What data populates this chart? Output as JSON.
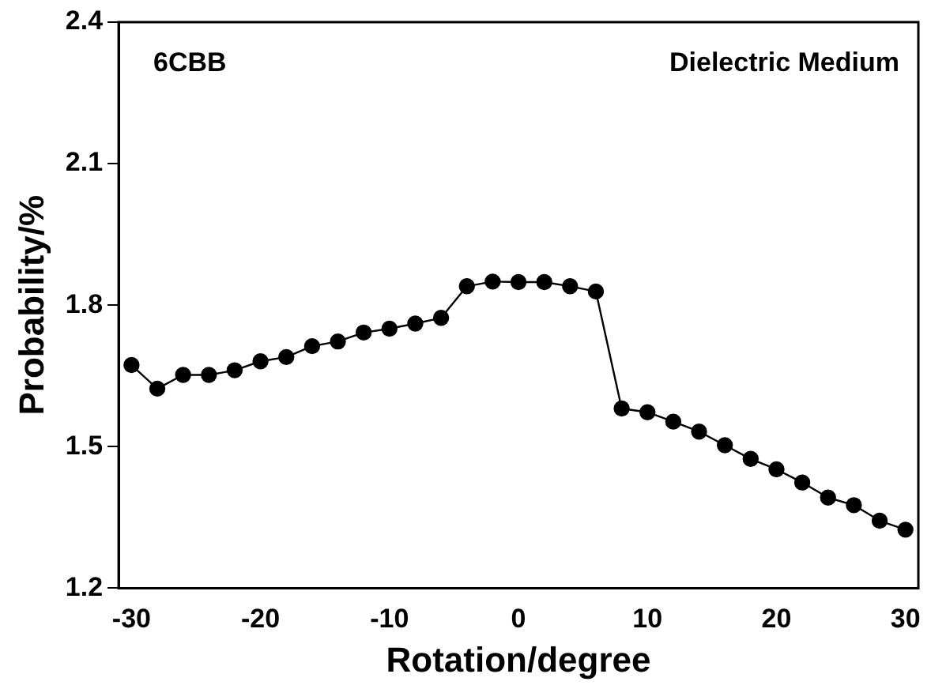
{
  "chart_data": {
    "type": "line",
    "xlabel": "Rotation/degree",
    "ylabel": "Probability/%",
    "annotations": [
      "6CBB",
      "Dielectric Medium"
    ],
    "x": [
      -30,
      -28,
      -26,
      -24,
      -22,
      -20,
      -18,
      -16,
      -14,
      -12,
      -10,
      -8,
      -6,
      -4,
      -2,
      0,
      2,
      4,
      6,
      8,
      10,
      12,
      14,
      16,
      18,
      20,
      22,
      24,
      26,
      28,
      30
    ],
    "series": [
      {
        "color": "#000000",
        "values": [
          1.673,
          1.623,
          1.652,
          1.652,
          1.662,
          1.681,
          1.69,
          1.713,
          1.723,
          1.742,
          1.75,
          1.761,
          1.773,
          1.84,
          1.85,
          1.849,
          1.849,
          1.84,
          1.829,
          1.581,
          1.573,
          1.553,
          1.532,
          1.503,
          1.474,
          1.452,
          1.424,
          1.392,
          1.376,
          1.343,
          1.324
        ]
      }
    ],
    "xlim": [
      -31,
      31
    ],
    "xticks": [
      -30,
      -20,
      -10,
      0,
      10,
      20,
      30
    ],
    "ylim": [
      1.2,
      2.4
    ],
    "yticks": [
      1.2,
      1.5,
      1.8,
      2.1,
      2.4
    ],
    "grid": false,
    "legend": false,
    "marker": "circle",
    "line_style": "solid"
  }
}
